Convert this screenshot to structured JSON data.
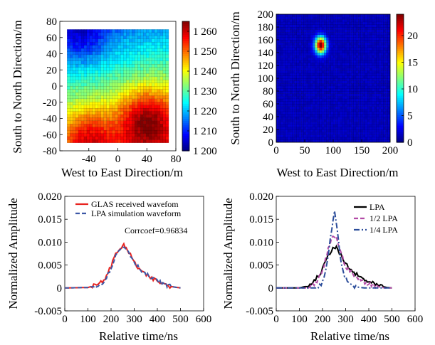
{
  "chart_data": [
    {
      "type": "heatmap",
      "xlabel": "West to East Direction/m",
      "ylabel": "South to North Direction/m",
      "xlim": [
        -80,
        80
      ],
      "ylim": [
        -80,
        80
      ],
      "xticks": [
        -40,
        0,
        40,
        80
      ],
      "yticks": [
        80,
        60,
        40,
        20,
        0,
        -20,
        -40,
        -60,
        -80
      ],
      "data_extent": {
        "x": [
          -70,
          70
        ],
        "y": [
          -70,
          70
        ]
      },
      "colorbar": {
        "min": 1200,
        "max": 1265,
        "ticks": [
          "1 260",
          "1 250",
          "1 240",
          "1 230",
          "1 220",
          "1 210",
          "1 200"
        ],
        "tick_values": [
          1260,
          1250,
          1240,
          1230,
          1220,
          1210,
          1200
        ]
      },
      "features": [
        {
          "description": "low elevation",
          "x": -50,
          "y": 60,
          "value": 1202
        },
        {
          "description": "high elevation",
          "x": 40,
          "y": -40,
          "value": 1262
        },
        {
          "description": "high elevation",
          "x": -40,
          "y": -62,
          "value": 1258
        }
      ],
      "grid": true
    },
    {
      "type": "heatmap",
      "xlabel": "West to East Direction/m",
      "ylabel": "South to North Direction/m",
      "xlim": [
        0,
        200
      ],
      "ylim": [
        0,
        200
      ],
      "xticks": [
        0,
        50,
        100,
        150,
        200
      ],
      "yticks": [
        200,
        180,
        160,
        140,
        120,
        100,
        80,
        60,
        40,
        20,
        0
      ],
      "colorbar": {
        "min": 0,
        "max": 24,
        "ticks": [
          "20",
          "15",
          "10",
          "5",
          "0"
        ],
        "tick_values": [
          20,
          15,
          10,
          5,
          0
        ]
      },
      "features": [
        {
          "description": "peak",
          "x": 78,
          "y": 152,
          "value": 24
        }
      ],
      "grid": true
    },
    {
      "type": "line",
      "xlabel": "Relative time/ns",
      "ylabel": "Normalized Amplitude",
      "xlim": [
        0,
        600
      ],
      "ylim": [
        -0.005,
        0.02
      ],
      "xticks": [
        0,
        100,
        200,
        300,
        400,
        500,
        600
      ],
      "yticks": [
        "0.020",
        "0.015",
        "0.010",
        "0.005",
        "0",
        "-0.005"
      ],
      "ytick_values": [
        0.02,
        0.015,
        0.01,
        0.005,
        0,
        -0.005
      ],
      "annotation": "Corrcoef=0.96834",
      "legend_position": "top",
      "series": [
        {
          "name": "GLAS received wavefom",
          "color": "#e8231f",
          "style": "solid",
          "points": [
            [
              0,
              0
            ],
            [
              100,
              0.0001
            ],
            [
              150,
              0.0008
            ],
            [
              180,
              0.0025
            ],
            [
              200,
              0.0048
            ],
            [
              220,
              0.0075
            ],
            [
              240,
              0.0088
            ],
            [
              255,
              0.0092
            ],
            [
              270,
              0.0085
            ],
            [
              290,
              0.0065
            ],
            [
              310,
              0.0048
            ],
            [
              340,
              0.0032
            ],
            [
              370,
              0.0022
            ],
            [
              400,
              0.0015
            ],
            [
              430,
              0.0008
            ],
            [
              460,
              0.0003
            ],
            [
              500,
              0
            ]
          ]
        },
        {
          "name": "LPA simulation waveform",
          "color": "#3c57a6",
          "style": "dashed",
          "points": [
            [
              0,
              0
            ],
            [
              100,
              0.0001
            ],
            [
              150,
              0.0006
            ],
            [
              180,
              0.0022
            ],
            [
              200,
              0.0045
            ],
            [
              220,
              0.007
            ],
            [
              240,
              0.0085
            ],
            [
              255,
              0.009
            ],
            [
              270,
              0.0084
            ],
            [
              290,
              0.0066
            ],
            [
              310,
              0.005
            ],
            [
              340,
              0.0034
            ],
            [
              370,
              0.0023
            ],
            [
              400,
              0.0015
            ],
            [
              430,
              0.0008
            ],
            [
              460,
              0.0003
            ],
            [
              500,
              0
            ]
          ]
        }
      ]
    },
    {
      "type": "line",
      "xlabel": "Relative time/ns",
      "ylabel": "Normalized Amplitude",
      "xlim": [
        0,
        600
      ],
      "ylim": [
        -0.005,
        0.02
      ],
      "xticks": [
        0,
        100,
        200,
        300,
        400,
        500,
        600
      ],
      "yticks": [
        "0.020",
        "0.015",
        "0.010",
        "0.005",
        "0",
        "-0.005"
      ],
      "ytick_values": [
        0.02,
        0.015,
        0.01,
        0.005,
        0,
        -0.005
      ],
      "legend_position": "top-right",
      "series": [
        {
          "name": "LPA",
          "color": "#000000",
          "style": "solid",
          "points": [
            [
              0,
              0
            ],
            [
              100,
              0
            ],
            [
              140,
              0.0005
            ],
            [
              170,
              0.0018
            ],
            [
              200,
              0.004
            ],
            [
              225,
              0.0072
            ],
            [
              245,
              0.0088
            ],
            [
              260,
              0.0087
            ],
            [
              280,
              0.007
            ],
            [
              300,
              0.0052
            ],
            [
              330,
              0.0035
            ],
            [
              360,
              0.0024
            ],
            [
              400,
              0.0013
            ],
            [
              440,
              0.0005
            ],
            [
              480,
              0.0001
            ],
            [
              500,
              0
            ]
          ]
        },
        {
          "name": "1/2 LPA",
          "color": "#b24ba6",
          "style": "dashed",
          "points": [
            [
              0,
              0
            ],
            [
              140,
              0
            ],
            [
              170,
              0.001
            ],
            [
              200,
              0.0035
            ],
            [
              225,
              0.0085
            ],
            [
              245,
              0.0115
            ],
            [
              260,
              0.011
            ],
            [
              280,
              0.0075
            ],
            [
              300,
              0.0048
            ],
            [
              330,
              0.003
            ],
            [
              360,
              0.0018
            ],
            [
              400,
              0.0009
            ],
            [
              440,
              0.0003
            ],
            [
              470,
              0
            ],
            [
              500,
              0
            ]
          ]
        },
        {
          "name": "1/4 LPA",
          "color": "#2b4c9a",
          "style": "dashdot",
          "points": [
            [
              0,
              0
            ],
            [
              170,
              0
            ],
            [
              200,
              0.0012
            ],
            [
              220,
              0.0055
            ],
            [
              240,
              0.013
            ],
            [
              252,
              0.017
            ],
            [
              262,
              0.0135
            ],
            [
              275,
              0.007
            ],
            [
              295,
              0.0025
            ],
            [
              320,
              0.0008
            ],
            [
              350,
              0.0002
            ],
            [
              380,
              0
            ],
            [
              500,
              0
            ]
          ]
        }
      ]
    }
  ]
}
